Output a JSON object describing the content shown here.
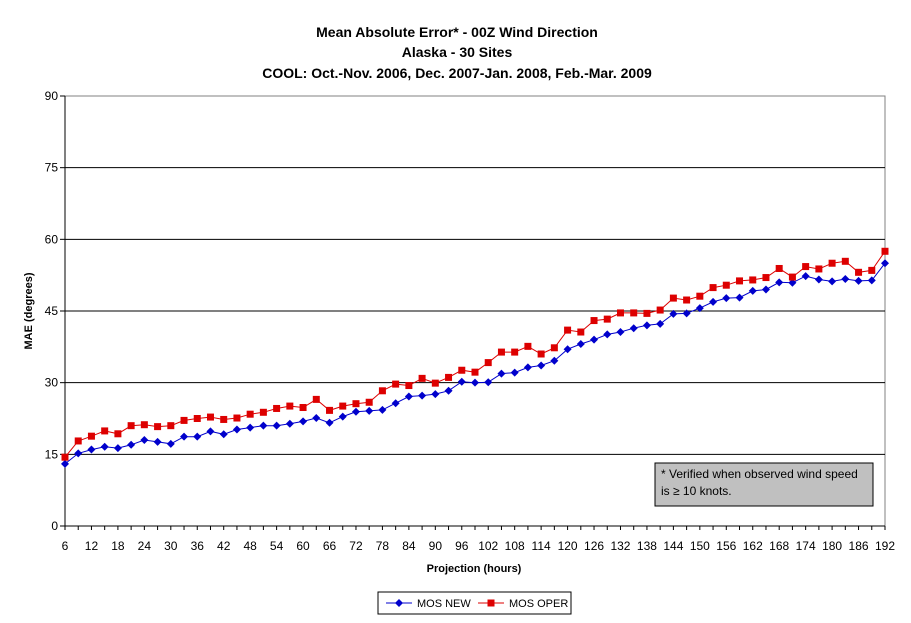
{
  "chart_data": {
    "type": "line",
    "title_lines": [
      "Mean Absolute Error* - 00Z Wind Direction",
      "Alaska - 30 Sites",
      "COOL: Oct.-Nov. 2006, Dec. 2007-Jan. 2008, Feb.-Mar. 2009"
    ],
    "xlabel": "Projection (hours)",
    "ylabel": "MAE (degrees)",
    "xlim": [
      6,
      192
    ],
    "ylim": [
      0,
      90
    ],
    "y_ticks": [
      0,
      15,
      30,
      45,
      60,
      75,
      90
    ],
    "x_tick_labels": [
      "6",
      "12",
      "18",
      "24",
      "30",
      "36",
      "42",
      "48",
      "54",
      "60",
      "66",
      "72",
      "78",
      "84",
      "90",
      "96",
      "102",
      "108",
      "114",
      "120",
      "126",
      "132",
      "138",
      "144",
      "150",
      "156",
      "162",
      "168",
      "174",
      "180",
      "186",
      "192"
    ],
    "grid": true,
    "legend_position": "bottom",
    "note_lines": [
      "* Verified when observed wind speed",
      "is ≥ 10 knots."
    ],
    "x": [
      6,
      9,
      12,
      15,
      18,
      21,
      24,
      27,
      30,
      33,
      36,
      39,
      42,
      45,
      48,
      51,
      54,
      57,
      60,
      63,
      66,
      69,
      72,
      75,
      78,
      81,
      84,
      87,
      90,
      93,
      96,
      99,
      102,
      105,
      108,
      111,
      114,
      117,
      120,
      123,
      126,
      129,
      132,
      135,
      138,
      141,
      144,
      147,
      150,
      153,
      156,
      159,
      162,
      165,
      168,
      171,
      174,
      177,
      180,
      183,
      186,
      189,
      192
    ],
    "series": [
      {
        "name": "MOS NEW",
        "color": "#0000CC",
        "marker": "diamond",
        "values": [
          13.0,
          15.2,
          16.0,
          16.6,
          16.3,
          17.0,
          18.0,
          17.6,
          17.2,
          18.7,
          18.7,
          19.8,
          19.2,
          20.2,
          20.6,
          21.0,
          21.0,
          21.4,
          21.9,
          22.6,
          21.6,
          22.9,
          23.9,
          24.1,
          24.3,
          25.7,
          27.1,
          27.3,
          27.6,
          28.3,
          30.2,
          30.0,
          30.1,
          31.9,
          32.1,
          33.2,
          33.6,
          34.6,
          37.0,
          38.1,
          39.0,
          40.1,
          40.6,
          41.4,
          42.0,
          42.3,
          44.4,
          44.5,
          45.6,
          46.9,
          47.7,
          47.8,
          49.2,
          49.5,
          51.0,
          50.9,
          52.3,
          51.6,
          51.2,
          51.7,
          51.3,
          51.4,
          55.0
        ]
      },
      {
        "name": "MOS OPER",
        "color": "#DD0000",
        "marker": "square",
        "values": [
          14.4,
          17.8,
          18.8,
          19.9,
          19.3,
          21.0,
          21.2,
          20.8,
          21.0,
          22.1,
          22.5,
          22.8,
          22.3,
          22.6,
          23.4,
          23.8,
          24.6,
          25.1,
          24.8,
          26.5,
          24.2,
          25.1,
          25.6,
          25.9,
          28.3,
          29.7,
          29.4,
          30.9,
          29.9,
          31.1,
          32.6,
          32.2,
          34.2,
          36.4,
          36.4,
          37.6,
          36.0,
          37.3,
          41.0,
          40.6,
          43.0,
          43.3,
          44.6,
          44.6,
          44.5,
          45.2,
          47.7,
          47.3,
          48.1,
          49.9,
          50.4,
          51.3,
          51.5,
          52.0,
          53.9,
          52.1,
          54.3,
          53.8,
          55.0,
          55.4,
          53.1,
          53.5,
          57.5
        ]
      }
    ]
  }
}
